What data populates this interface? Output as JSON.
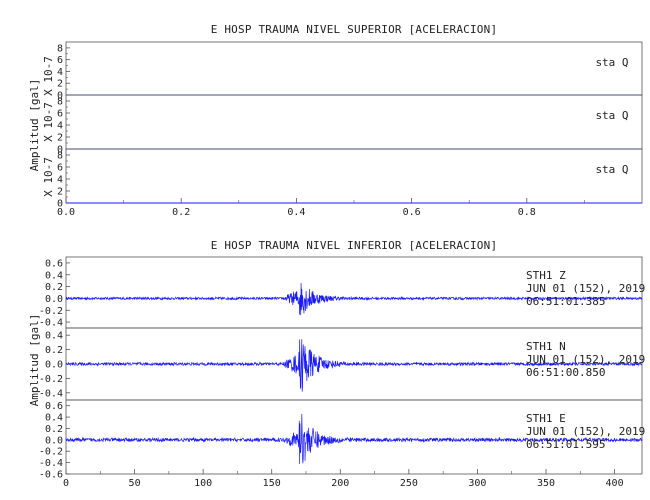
{
  "chart_data": [
    {
      "type": "line",
      "title": "E HOSP TRAUMA NIVEL SUPERIOR [ACELERACION]",
      "ylabel": "Amplitud [gal]",
      "xlim": [
        0,
        1.0
      ],
      "x_ticks": [
        "0.0",
        "0.2",
        "0.4",
        "0.6",
        "0.8"
      ],
      "panels": [
        {
          "label": "sta  Q",
          "ylabel": "X 10-7",
          "y_ticks": [
            "8",
            "6",
            "4",
            "2",
            "0"
          ],
          "ylim": [
            0,
            9
          ],
          "values": "flat at 0"
        },
        {
          "label": "sta  Q",
          "ylabel": "X 10-7",
          "y_ticks": [
            "8",
            "6",
            "4",
            "2",
            "0"
          ],
          "ylim": [
            0,
            9
          ],
          "values": "flat at 0"
        },
        {
          "label": "sta  Q",
          "ylabel": "X 10-7",
          "y_ticks": [
            "8",
            "6",
            "4",
            "2",
            "0"
          ],
          "ylim": [
            0,
            9
          ],
          "values": "flat at 0"
        }
      ]
    },
    {
      "type": "line",
      "title": "E HOSP TRAUMA NIVEL INFERIOR [ACELERACION]",
      "ylabel": "Amplitud [gal]",
      "xlim": [
        0,
        420
      ],
      "x_ticks": [
        "0",
        "50",
        "100",
        "150",
        "200",
        "250",
        "300",
        "350",
        "400"
      ],
      "series_color": "#1a1aff",
      "event_time_s": 170,
      "panels": [
        {
          "name": "STH1  Z",
          "label": [
            "STH1   Z",
            "JUN 01 (152), 2019",
            "06:51:01.385"
          ],
          "y_ticks": [
            "0.6",
            "0.4",
            "0.2",
            "0.0",
            "-0.2",
            "-0.4"
          ],
          "ylim": [
            -0.5,
            0.7
          ],
          "peak_positive": 0.35,
          "peak_negative": -0.3,
          "noise_level": 0.02
        },
        {
          "name": "STH1  N",
          "label": [
            "STH1   N",
            "JUN 01 (152), 2019",
            "06:51:00.850"
          ],
          "y_ticks": [
            "0.4",
            "0.2",
            "0.0",
            "-0.2",
            "-0.4"
          ],
          "ylim": [
            -0.5,
            0.5
          ],
          "peak_positive": 0.45,
          "peak_negative": -0.48,
          "noise_level": 0.02
        },
        {
          "name": "STH1  E",
          "label": [
            "STH1   E",
            "JUN 01 (152), 2019",
            "06:51:01.595"
          ],
          "y_ticks": [
            "0.6",
            "0.4",
            "0.2",
            "0.0",
            "-0.2",
            "-0.4",
            "-0.6"
          ],
          "ylim": [
            -0.6,
            0.7
          ],
          "peak_positive": 0.55,
          "peak_negative": -0.5,
          "noise_level": 0.03
        }
      ]
    }
  ]
}
